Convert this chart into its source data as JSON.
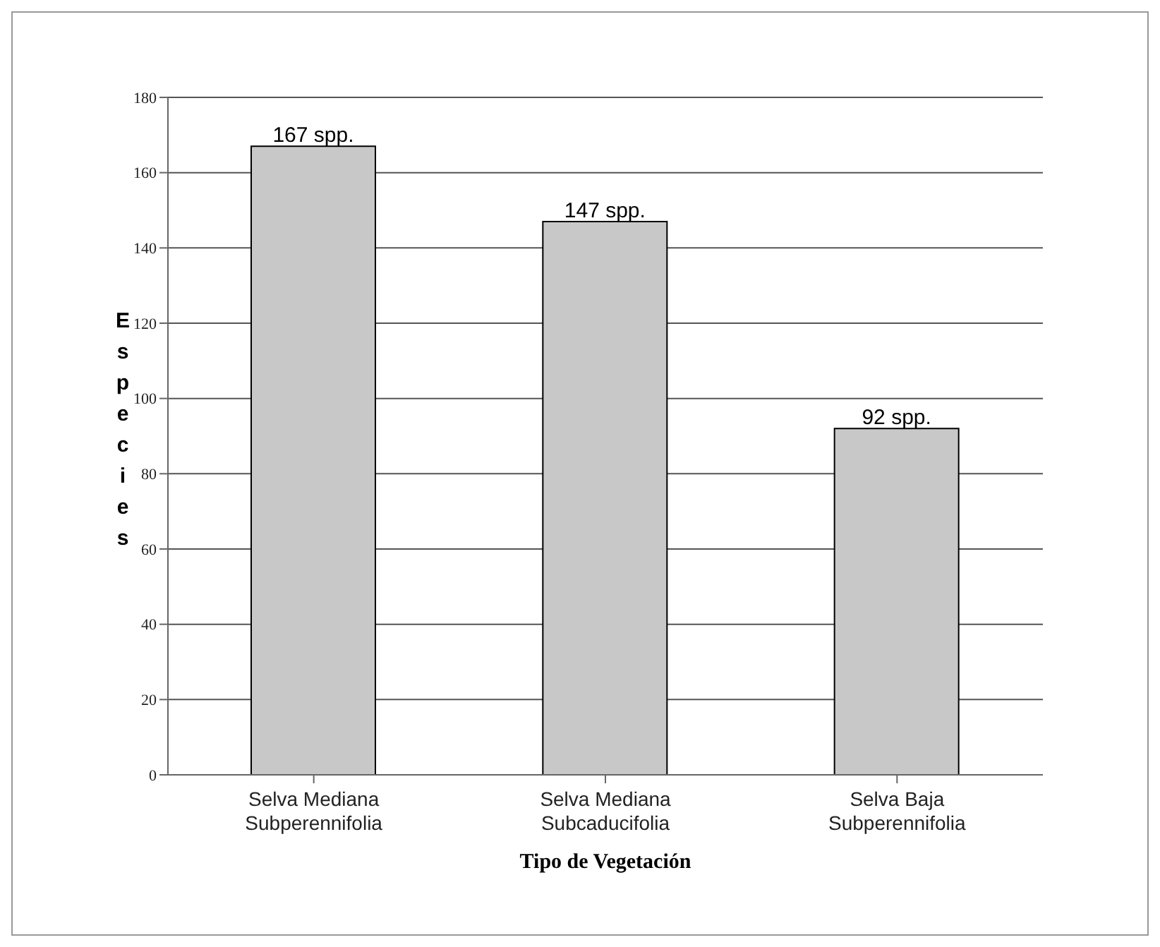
{
  "chart_data": {
    "type": "bar",
    "xlabel": "Tipo de Vegetación",
    "ylabel": "Especies",
    "categories": [
      "Selva Mediana Subperennifolia",
      "Selva Mediana Subcaducifolia",
      "Selva Baja Subperennifolia"
    ],
    "values": [
      167,
      147,
      92
    ],
    "color": "#c8c8c8",
    "value_labels": [
      "167 spp.",
      "147 spp.",
      "92 spp."
    ],
    "ylim": [
      0,
      180
    ],
    "yticks": [
      0,
      20,
      40,
      60,
      80,
      100,
      120,
      140,
      160,
      180
    ],
    "grid": "y"
  }
}
